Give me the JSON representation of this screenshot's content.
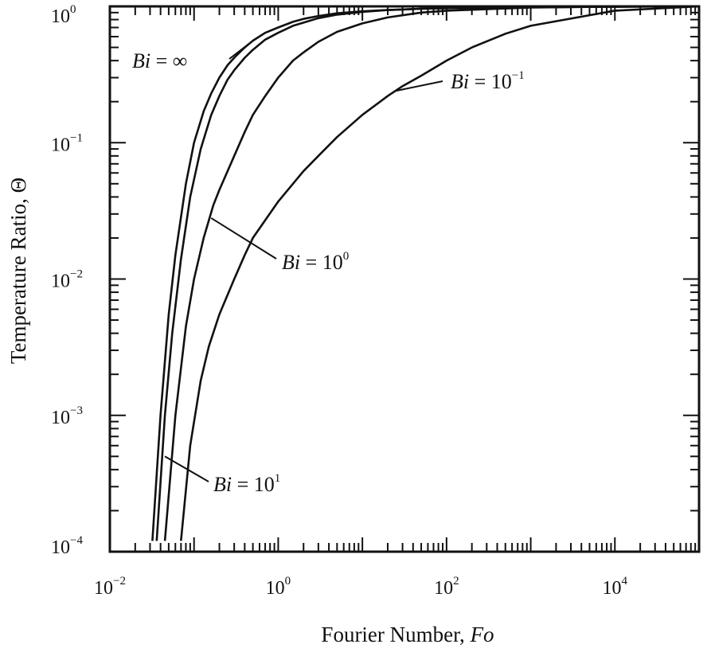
{
  "chart_data": {
    "type": "line",
    "xscale": "log",
    "yscale": "log",
    "xlim": [
      0.01,
      100000
    ],
    "ylim": [
      0.0001,
      1
    ],
    "xlabel": "Fourier Number,",
    "xlabel_symbol": "Fo",
    "ylabel": "Temperature Ratio,",
    "ylabel_symbol": "Θ",
    "xticks": [
      {
        "value": 0.01,
        "base": "10",
        "exp": "−2"
      },
      {
        "value": 1,
        "base": "10",
        "exp": "0"
      },
      {
        "value": 100,
        "base": "10",
        "exp": "2"
      },
      {
        "value": 10000,
        "base": "10",
        "exp": "4"
      }
    ],
    "yticks": [
      {
        "value": 1,
        "base": "10",
        "exp": "0"
      },
      {
        "value": 0.1,
        "base": "10",
        "exp": "−1"
      },
      {
        "value": 0.01,
        "base": "10",
        "exp": "−2"
      },
      {
        "value": 0.001,
        "base": "10",
        "exp": "−3"
      },
      {
        "value": 0.0001,
        "base": "10",
        "exp": "−4"
      }
    ],
    "grid": false,
    "legend": "none",
    "series": [
      {
        "label_prefix": "Bi",
        "label_value": "∞",
        "label_exp": "",
        "x": [
          0.032,
          0.04,
          0.05,
          0.06,
          0.08,
          0.1,
          0.13,
          0.16,
          0.2,
          0.25,
          0.3,
          0.4,
          0.5,
          0.7,
          1,
          1.5,
          2,
          3,
          5,
          10,
          20,
          50,
          100,
          1000,
          10000,
          100000
        ],
        "y": [
          0.00012,
          0.001,
          0.0055,
          0.015,
          0.05,
          0.1,
          0.17,
          0.23,
          0.3,
          0.37,
          0.42,
          0.5,
          0.56,
          0.64,
          0.7,
          0.77,
          0.81,
          0.85,
          0.89,
          0.92,
          0.94,
          0.96,
          0.97,
          0.985,
          0.995,
          1
        ]
      },
      {
        "label_prefix": "Bi",
        "label_value": "10",
        "label_exp": "1",
        "x": [
          0.036,
          0.045,
          0.055,
          0.07,
          0.09,
          0.12,
          0.16,
          0.2,
          0.25,
          0.3,
          0.4,
          0.5,
          0.7,
          1,
          1.5,
          2,
          3,
          5,
          10,
          20,
          50,
          100,
          1000,
          10000,
          100000
        ],
        "y": [
          0.00012,
          0.001,
          0.004,
          0.014,
          0.04,
          0.09,
          0.16,
          0.22,
          0.29,
          0.34,
          0.42,
          0.48,
          0.57,
          0.64,
          0.72,
          0.76,
          0.82,
          0.87,
          0.91,
          0.94,
          0.96,
          0.97,
          0.985,
          0.995,
          1
        ]
      },
      {
        "label_prefix": "Bi",
        "label_value": "10",
        "label_exp": "0",
        "x": [
          0.045,
          0.06,
          0.08,
          0.1,
          0.13,
          0.17,
          0.2,
          0.3,
          0.4,
          0.5,
          0.7,
          1,
          1.5,
          2,
          3,
          5,
          10,
          20,
          50,
          100,
          1000,
          10000,
          100000
        ],
        "y": [
          0.00012,
          0.001,
          0.0045,
          0.01,
          0.02,
          0.035,
          0.045,
          0.08,
          0.12,
          0.16,
          0.22,
          0.3,
          0.4,
          0.46,
          0.55,
          0.65,
          0.75,
          0.83,
          0.9,
          0.93,
          0.98,
          0.995,
          1
        ]
      },
      {
        "label_prefix": "Bi",
        "label_value": "10",
        "label_exp": "−1",
        "x": [
          0.07,
          0.09,
          0.12,
          0.15,
          0.2,
          0.3,
          0.4,
          0.5,
          0.7,
          1,
          1.5,
          2,
          3,
          5,
          10,
          20,
          30,
          50,
          100,
          200,
          500,
          1000,
          10000,
          100000
        ],
        "y": [
          0.00012,
          0.0006,
          0.0018,
          0.0032,
          0.0055,
          0.01,
          0.015,
          0.02,
          0.027,
          0.037,
          0.05,
          0.062,
          0.08,
          0.11,
          0.16,
          0.22,
          0.26,
          0.31,
          0.4,
          0.5,
          0.63,
          0.72,
          0.93,
          1
        ]
      }
    ]
  }
}
